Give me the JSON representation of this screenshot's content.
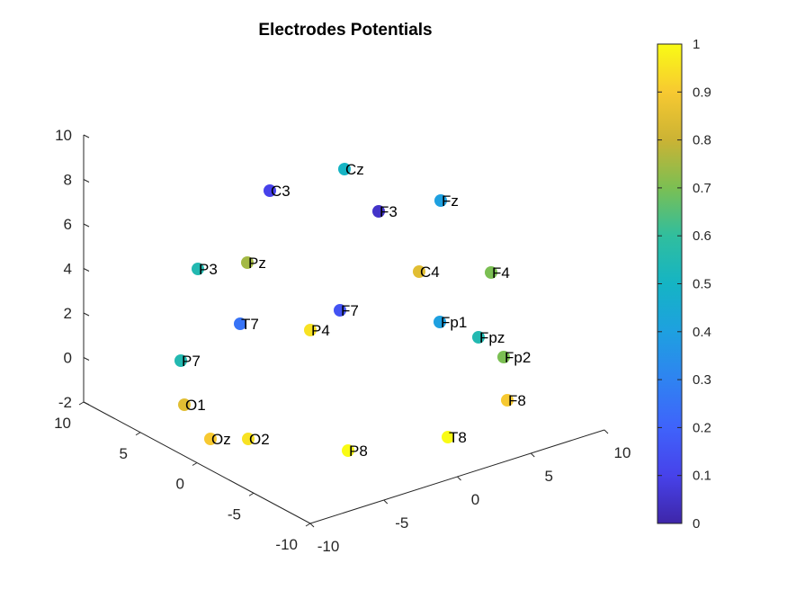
{
  "chart_data": {
    "type": "scatter",
    "title": "Electrodes Potentials",
    "xlabel": "",
    "ylabel": "",
    "zlabel": "",
    "axes": {
      "x_ticks": [
        "-10",
        "-5",
        "0",
        "5",
        "10"
      ],
      "y_ticks": [
        "-10",
        "-5",
        "0",
        "5",
        "10"
      ],
      "z_ticks": [
        "-2",
        "0",
        "2",
        "4",
        "6",
        "8",
        "10"
      ],
      "xlim": [
        -10,
        10
      ],
      "ylim": [
        -10,
        10
      ],
      "zlim": [
        -2,
        10
      ]
    },
    "colormap": "parula",
    "colorbar": {
      "ticks": [
        "0",
        "0.1",
        "0.2",
        "0.3",
        "0.4",
        "0.5",
        "0.6",
        "0.7",
        "0.8",
        "0.9",
        "1"
      ],
      "range": [
        0,
        1
      ],
      "placement": "right"
    },
    "electrodes": [
      {
        "label": "Cz",
        "value": 0.5
      },
      {
        "label": "C3",
        "value": 0.1
      },
      {
        "label": "Fz",
        "value": 0.4
      },
      {
        "label": "F3",
        "value": 0.05
      },
      {
        "label": "P3",
        "value": 0.55
      },
      {
        "label": "Pz",
        "value": 0.75
      },
      {
        "label": "C4",
        "value": 0.85
      },
      {
        "label": "F4",
        "value": 0.7
      },
      {
        "label": "F7",
        "value": 0.15
      },
      {
        "label": "T7",
        "value": 0.25
      },
      {
        "label": "P4",
        "value": 0.95
      },
      {
        "label": "Fp1",
        "value": 0.4
      },
      {
        "label": "Fpz",
        "value": 0.55
      },
      {
        "label": "P7",
        "value": 0.55
      },
      {
        "label": "Fp2",
        "value": 0.7
      },
      {
        "label": "F8",
        "value": 0.9
      },
      {
        "label": "O1",
        "value": 0.85
      },
      {
        "label": "Oz",
        "value": 0.9
      },
      {
        "label": "O2",
        "value": 0.95
      },
      {
        "label": "T8",
        "value": 1.0
      },
      {
        "label": "P8",
        "value": 1.0
      }
    ]
  }
}
